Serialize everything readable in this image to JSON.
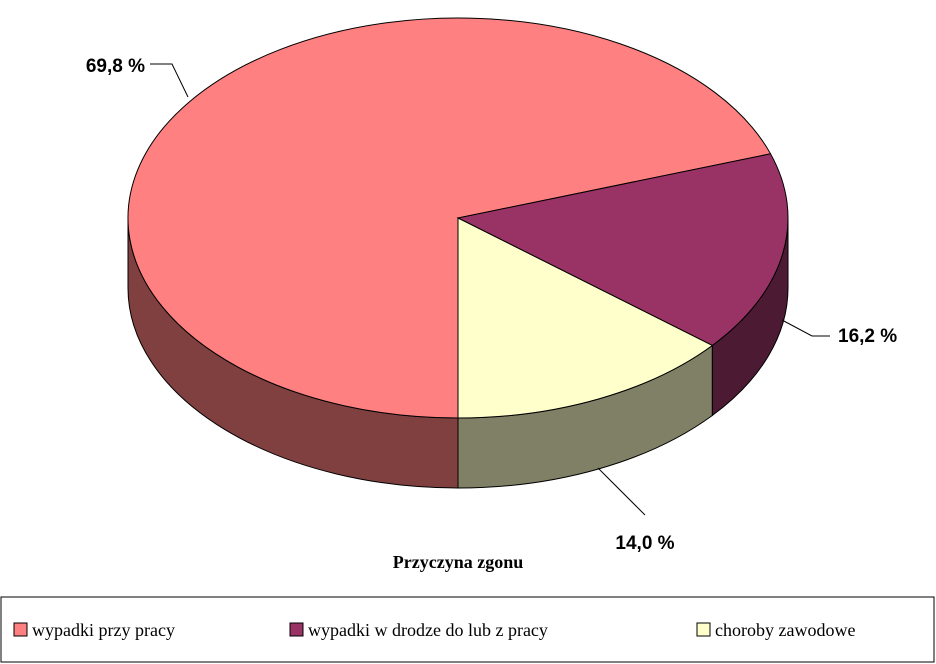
{
  "chart_data": {
    "type": "pie3d",
    "title": "Przyczyna zgonu",
    "categories": [
      "wypadki przy pracy",
      "wypadki w drodze do lub z pracy",
      "choroby zawodowe"
    ],
    "values": [
      69.8,
      16.2,
      14.0
    ],
    "value_labels": [
      "69,8 %",
      "16,2 %",
      "14,0 %"
    ],
    "colors": [
      "#ff8080",
      "#993366",
      "#ffffcc"
    ],
    "legend": "bottom"
  }
}
